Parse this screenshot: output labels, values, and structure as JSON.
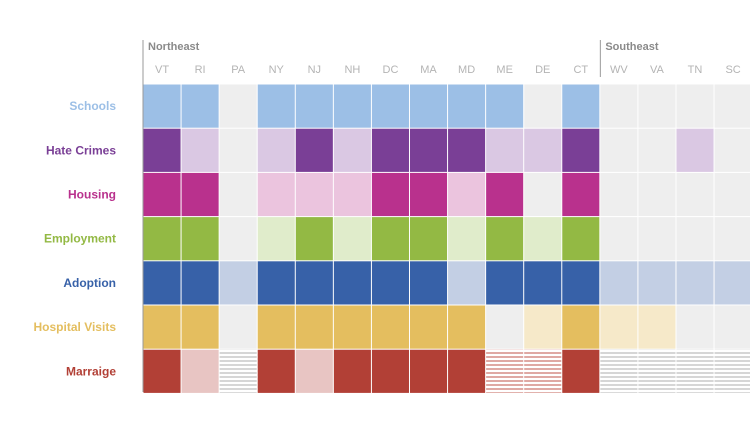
{
  "chart_data": {
    "type": "heatmap",
    "regions": [
      {
        "label": "Northeast",
        "start_state": "VT"
      },
      {
        "label": "Southeast",
        "start_state": "WV"
      }
    ],
    "states": [
      "VT",
      "RI",
      "PA",
      "NY",
      "NJ",
      "NH",
      "DC",
      "MA",
      "MD",
      "ME",
      "DE",
      "CT",
      "WV",
      "VA",
      "TN",
      "SC"
    ],
    "legend_levels": {
      "full": "full color",
      "partial": "light tint",
      "none": "grey",
      "striped": "horizontal stripes"
    },
    "rows": [
      {
        "label": "Schools",
        "color": "#9cbfe6",
        "tint": "#c9d9ef",
        "values": [
          "full",
          "full",
          "none",
          "full",
          "full",
          "full",
          "full",
          "full",
          "full",
          "full",
          "none",
          "full",
          "none",
          "none",
          "none",
          "none"
        ]
      },
      {
        "label": "Hate Crimes",
        "color": "#7a3f96",
        "tint": "#dac8e3",
        "values": [
          "full",
          "partial",
          "none",
          "partial",
          "full",
          "partial",
          "full",
          "full",
          "full",
          "partial",
          "partial",
          "full",
          "none",
          "none",
          "partial",
          "none"
        ]
      },
      {
        "label": "Housing",
        "color": "#b9318d",
        "tint": "#ebc4de",
        "values": [
          "full",
          "full",
          "none",
          "partial",
          "partial",
          "partial",
          "full",
          "full",
          "partial",
          "full",
          "none",
          "full",
          "none",
          "none",
          "none",
          "none"
        ]
      },
      {
        "label": "Employment",
        "color": "#93b944",
        "tint": "#e0eccb",
        "values": [
          "full",
          "full",
          "none",
          "partial",
          "full",
          "partial",
          "full",
          "full",
          "partial",
          "full",
          "partial",
          "full",
          "none",
          "none",
          "none",
          "none"
        ]
      },
      {
        "label": "Adoption",
        "color": "#3761a8",
        "tint": "#c3cfe4",
        "values": [
          "full",
          "full",
          "partial",
          "full",
          "full",
          "full",
          "full",
          "full",
          "partial",
          "full",
          "full",
          "full",
          "partial",
          "partial",
          "partial",
          "partial"
        ]
      },
      {
        "label": "Hospital Visits",
        "color": "#e4be5f",
        "tint": "#f6e9c9",
        "values": [
          "full",
          "full",
          "none",
          "full",
          "full",
          "full",
          "full",
          "full",
          "full",
          "none",
          "partial",
          "full",
          "partial",
          "partial",
          "none",
          "none"
        ]
      },
      {
        "label": "Marraige",
        "color": "#b24036",
        "tint": "#e8c5c3",
        "values": [
          "full",
          "partial",
          "striped",
          "full",
          "partial",
          "full",
          "full",
          "full",
          "full",
          "striped-color",
          "striped-color",
          "full",
          "striped",
          "striped",
          "striped",
          "striped"
        ]
      }
    ]
  }
}
